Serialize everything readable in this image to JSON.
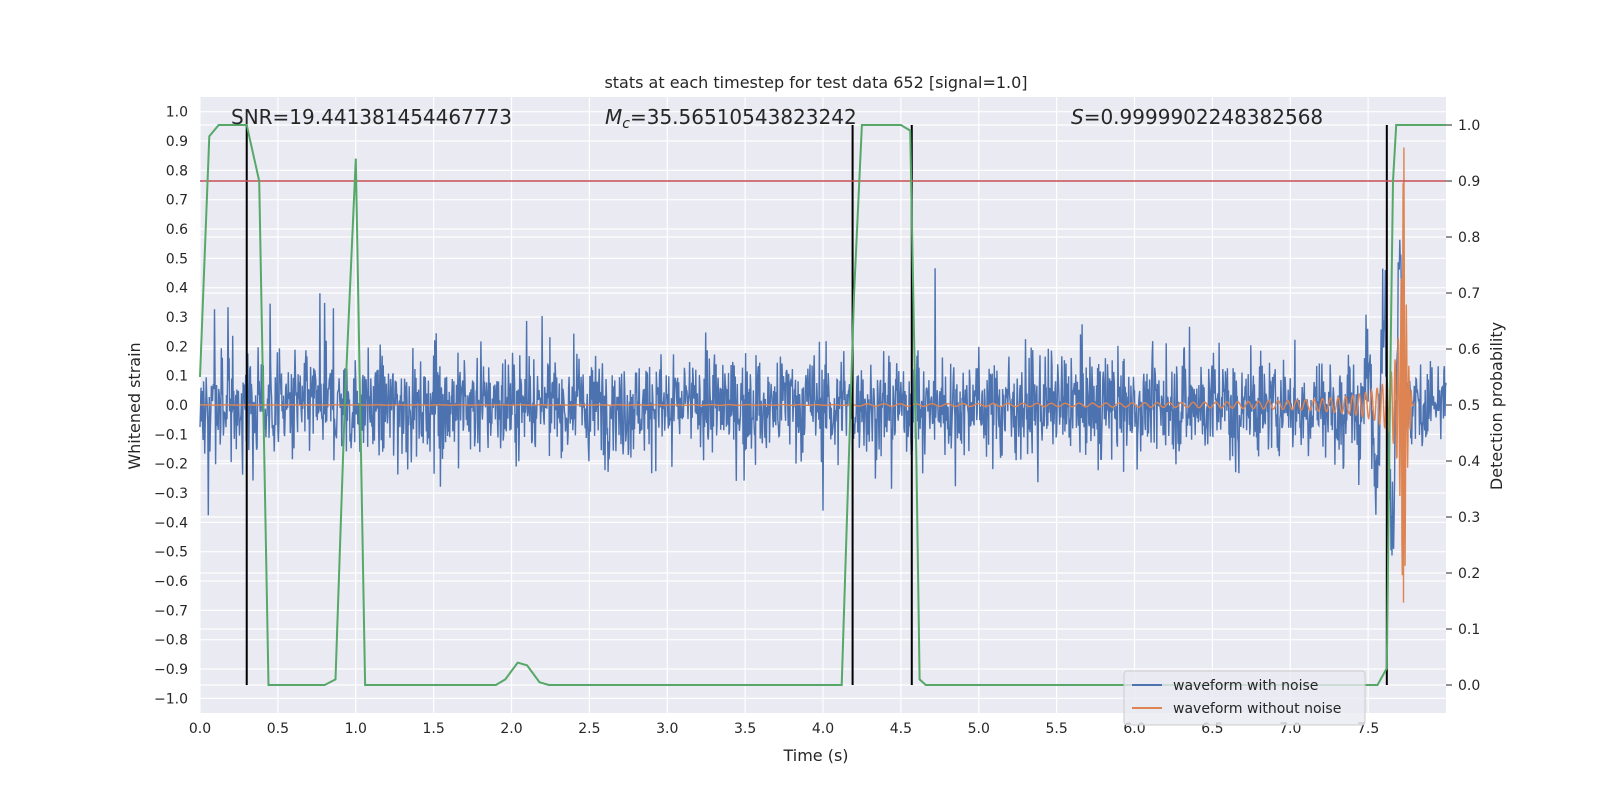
{
  "chart_data": {
    "type": "line",
    "title": "stats at each timestep for test data 652 [signal=1.0]",
    "xlabel": "Time (s)",
    "ylabel": "Whitened strain",
    "y2label": "Detection probability",
    "xlim": [
      0.0,
      8.0
    ],
    "ylim": [
      -1.05,
      1.05
    ],
    "y2lim": [
      -0.05,
      1.05
    ],
    "x_ticks": [
      "0.0",
      "0.5",
      "1.0",
      "1.5",
      "2.0",
      "2.5",
      "3.0",
      "3.5",
      "4.0",
      "4.5",
      "5.0",
      "5.5",
      "6.0",
      "6.5",
      "7.0",
      "7.5"
    ],
    "y_ticks": [
      "1.0",
      "0.9",
      "0.8",
      "0.7",
      "0.6",
      "0.5",
      "0.4",
      "0.3",
      "0.2",
      "0.1",
      "0.0",
      "−0.1",
      "−0.2",
      "−0.3",
      "−0.4",
      "−0.5",
      "−0.6",
      "−0.7",
      "−0.8",
      "−0.9",
      "−1.0"
    ],
    "y2_ticks": [
      "1.0",
      "0.9",
      "0.8",
      "0.7",
      "0.6",
      "0.5",
      "0.4",
      "0.3",
      "0.2",
      "0.1",
      "0.0"
    ],
    "grid": true,
    "legend_position": "lower-right",
    "annotations": {
      "snr": "SNR=19.441381454467773",
      "mc_symbol": "M",
      "mc_sub": "c",
      "mc_value": "=35.56510543823242",
      "s_symbol": "S",
      "s_value": "=0.9999902248382568"
    },
    "series": [
      {
        "name": "waveform with noise",
        "color": "#4c72b0",
        "noise_envelope": 0.22,
        "noise_peak": 0.49,
        "noise_trough": -0.5,
        "x_end": 8.0
      },
      {
        "name": "waveform without noise",
        "color": "#dd8452",
        "chirp_start": 4.2,
        "merger_time": 7.73,
        "peak_amplitude": 0.87
      },
      {
        "color": "#55a868",
        "axis": "right",
        "x": [
          0.0,
          0.06,
          0.12,
          0.18,
          0.24,
          0.3,
          0.38,
          0.44,
          0.5,
          0.6,
          0.7,
          0.8,
          0.87,
          0.93,
          1.0,
          1.06,
          1.12,
          1.2,
          1.4,
          1.6,
          1.8,
          1.9,
          1.96,
          2.04,
          2.1,
          2.18,
          2.24,
          2.4,
          3.0,
          3.6,
          4.0,
          4.12,
          4.2,
          4.25,
          4.3,
          4.4,
          4.5,
          4.56,
          4.6,
          4.62,
          4.66,
          4.7,
          5.0,
          5.5,
          6.0,
          6.5,
          7.0,
          7.5,
          7.56,
          7.62,
          7.64,
          7.66,
          7.68,
          7.7,
          7.75,
          7.8,
          7.9,
          8.0
        ],
        "y": [
          0.55,
          0.98,
          1.0,
          1.0,
          1.0,
          1.0,
          0.9,
          0.0,
          0.0,
          0.0,
          0.0,
          0.0,
          0.01,
          0.5,
          0.94,
          0.0,
          0.0,
          0.0,
          0.0,
          0.0,
          0.0,
          0.0,
          0.01,
          0.04,
          0.035,
          0.005,
          0.0,
          0.0,
          0.0,
          0.0,
          0.0,
          0.0,
          0.7,
          1.0,
          1.0,
          1.0,
          1.0,
          0.99,
          0.4,
          0.01,
          0.0,
          0.0,
          0.0,
          0.0,
          0.0,
          0.0,
          0.0,
          0.0,
          0.0,
          0.03,
          0.5,
          0.9,
          1.0,
          1.0,
          1.0,
          1.0,
          1.0,
          1.0
        ]
      }
    ],
    "threshold": {
      "value": 0.9,
      "axis": "right",
      "color": "#c44e52"
    },
    "event_markers_x": [
      0.3,
      4.19,
      4.57,
      7.62
    ]
  }
}
